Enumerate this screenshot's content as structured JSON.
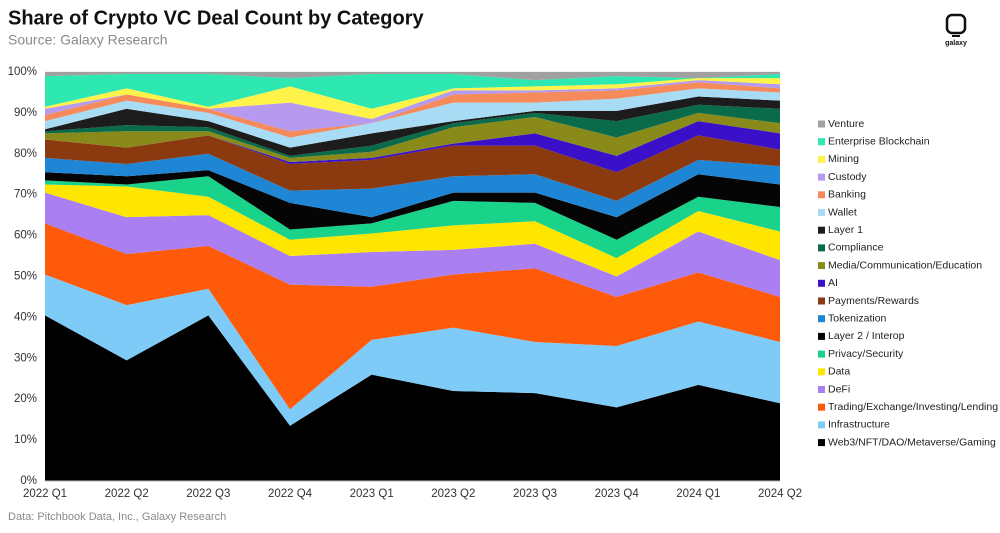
{
  "logo": "galaxy",
  "chart_data": {
    "type": "stacked-area",
    "title": "Share of Crypto VC Deal Count by Category",
    "subtitle": "Source: Galaxy Research",
    "source": "Data: Pitchbook Data, Inc., Galaxy Research",
    "categories": [
      "2022 Q1",
      "2022 Q2",
      "2022 Q3",
      "2022 Q4",
      "2023 Q1",
      "2023 Q2",
      "2023 Q3",
      "2023 Q4",
      "2024 Q1",
      "2024 Q2"
    ],
    "ylim": [
      0,
      100
    ],
    "yticks": [
      {
        "value": 0,
        "label": "0%"
      },
      {
        "value": 10,
        "label": "10%"
      },
      {
        "value": 20,
        "label": "20%"
      },
      {
        "value": 30,
        "label": "30%"
      },
      {
        "value": 40,
        "label": "40%"
      },
      {
        "value": 50,
        "label": "50%"
      },
      {
        "value": 60,
        "label": "60%"
      },
      {
        "value": 70,
        "label": "70%"
      },
      {
        "value": 80,
        "label": "80%"
      },
      {
        "value": 90,
        "label": "90%"
      },
      {
        "value": 100,
        "label": "100%"
      }
    ],
    "grid": true,
    "legend": "right",
    "series": [
      {
        "name": "Web3/NFT/DAO/Metaverse/Gaming",
        "color": "#000000",
        "values": [
          40.5,
          29.5,
          40.5,
          13.5,
          26,
          22,
          21.5,
          18,
          23.5,
          19
        ]
      },
      {
        "name": "Infrastructure",
        "color": "#7fcbf7",
        "values": [
          10,
          13.5,
          6.5,
          4,
          8.5,
          15.5,
          12.5,
          15,
          15.5,
          15
        ]
      },
      {
        "name": "Trading/Exchange/Investing/Lending",
        "color": "#ff5a0a",
        "values": [
          12.5,
          12.5,
          10.5,
          30.5,
          13,
          13,
          18,
          12,
          12,
          11
        ]
      },
      {
        "name": "DeFi",
        "color": "#a97ff2",
        "values": [
          7.5,
          9,
          7.5,
          7,
          8.5,
          6,
          6,
          5,
          10,
          9
        ]
      },
      {
        "name": "Data",
        "color": "#ffe600",
        "values": [
          2,
          7.5,
          4.5,
          4,
          4.5,
          6,
          5.5,
          4.5,
          5,
          7
        ]
      },
      {
        "name": "Privacy/Security",
        "color": "#19d38b",
        "values": [
          1,
          0.5,
          5,
          2.5,
          2.5,
          6,
          4.5,
          4.5,
          3.5,
          6
        ]
      },
      {
        "name": "Layer 2 / Interop",
        "color": "#050505",
        "values": [
          2,
          2,
          1.5,
          6.5,
          1.5,
          2,
          2.5,
          5.5,
          5.5,
          5.5
        ]
      },
      {
        "name": "Tokenization",
        "color": "#1f86d6",
        "values": [
          3.5,
          3,
          4,
          3,
          7,
          4,
          4.5,
          4,
          3.5,
          4.5
        ]
      },
      {
        "name": "Payments/Rewards",
        "color": "#8b3a10",
        "values": [
          4.5,
          4,
          4.5,
          6.5,
          7,
          7.5,
          7,
          7,
          6,
          4
        ]
      },
      {
        "name": "AI",
        "color": "#3a10c8",
        "values": [
          0,
          0,
          0,
          0.5,
          0.5,
          0.5,
          3,
          4,
          3.5,
          4
        ]
      },
      {
        "name": "Media/Communication/Education",
        "color": "#8a8a1a",
        "values": [
          1.5,
          4,
          1,
          1,
          1.5,
          4,
          4,
          4.5,
          2,
          2.5
        ]
      },
      {
        "name": "Compliance",
        "color": "#0a6b4a",
        "values": [
          0.5,
          1.5,
          1,
          0.5,
          1.5,
          1,
          1,
          4,
          2,
          3.5
        ]
      },
      {
        "name": "Layer 1",
        "color": "#1c1c1c",
        "values": [
          0.5,
          4,
          1.5,
          2,
          3,
          0.5,
          0.5,
          2.5,
          2,
          2
        ]
      },
      {
        "name": "Wallet",
        "color": "#a8dcf5",
        "values": [
          2,
          2,
          2,
          2.5,
          2.5,
          4.5,
          2,
          3,
          2,
          2
        ]
      },
      {
        "name": "Banking",
        "color": "#f58a5a",
        "values": [
          1.5,
          1.5,
          1,
          1.5,
          0,
          2,
          2.5,
          2,
          1.5,
          1
        ]
      },
      {
        "name": "Custody",
        "color": "#b59af0",
        "values": [
          1.5,
          0,
          0,
          7,
          1,
          1,
          0.5,
          0.5,
          0.5,
          1
        ]
      },
      {
        "name": "Mining",
        "color": "#fff34a",
        "values": [
          0.5,
          1.5,
          0.5,
          4,
          2.5,
          0.5,
          1,
          1,
          0.5,
          1.5
        ]
      },
      {
        "name": "Enterprise Blockchain",
        "color": "#2de8b0",
        "values": [
          7.5,
          3.5,
          8,
          2,
          8.5,
          3.5,
          1.5,
          2,
          0,
          1
        ]
      },
      {
        "name": "Venture",
        "color": "#a0a0a0",
        "values": [
          1,
          0.5,
          0.5,
          1.5,
          0.5,
          0.5,
          2,
          1,
          1.5,
          0.5
        ]
      }
    ]
  }
}
